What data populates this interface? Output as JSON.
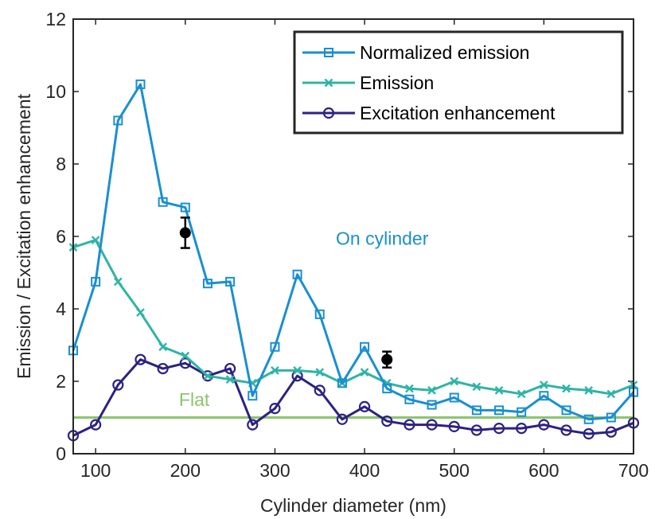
{
  "chart_data": {
    "type": "line",
    "xlabel": "Cylinder diameter (nm)",
    "ylabel": "Emission / Excitation enhancement",
    "xlim": [
      75,
      700
    ],
    "ylim": [
      0,
      12
    ],
    "x_ticks": [
      100,
      200,
      300,
      400,
      500,
      600,
      700
    ],
    "y_ticks": [
      0,
      2,
      4,
      6,
      8,
      10,
      12
    ],
    "legend_position": "top-right",
    "x": [
      75,
      100,
      125,
      150,
      175,
      200,
      225,
      250,
      275,
      300,
      325,
      350,
      375,
      400,
      425,
      450,
      475,
      500,
      525,
      550,
      575,
      600,
      625,
      650,
      675,
      700
    ],
    "series": [
      {
        "name": "Normalized emission",
        "color": "#1a8fd0",
        "marker": "square",
        "values": [
          2.85,
          4.75,
          9.2,
          10.2,
          6.95,
          6.8,
          4.7,
          4.75,
          1.6,
          2.95,
          4.95,
          3.85,
          1.95,
          2.95,
          1.8,
          1.5,
          1.35,
          1.55,
          1.2,
          1.2,
          1.15,
          1.6,
          1.2,
          0.95,
          1.0,
          1.7
        ]
      },
      {
        "name": "Emission",
        "color": "#2fb4a6",
        "marker": "x",
        "values": [
          5.7,
          5.9,
          4.75,
          3.9,
          2.95,
          2.7,
          2.15,
          2.05,
          1.95,
          2.3,
          2.3,
          2.25,
          1.95,
          2.25,
          1.95,
          1.8,
          1.75,
          2.0,
          1.85,
          1.75,
          1.65,
          1.9,
          1.8,
          1.75,
          1.65,
          1.9
        ]
      },
      {
        "name": "Excitation enhancement",
        "color": "#2b2282",
        "marker": "circle",
        "values": [
          0.5,
          0.8,
          1.9,
          2.6,
          2.35,
          2.5,
          2.15,
          2.35,
          0.8,
          1.25,
          2.15,
          1.75,
          0.95,
          1.3,
          0.9,
          0.8,
          0.8,
          0.75,
          0.65,
          0.7,
          0.7,
          0.8,
          0.65,
          0.55,
          0.6,
          0.85
        ]
      }
    ],
    "flat_line": {
      "label": "Flat",
      "value": 1.0,
      "color": "#8cc46e"
    },
    "measured_points": [
      {
        "x": 200,
        "y": 6.1,
        "err": 0.42
      },
      {
        "x": 425,
        "y": 2.6,
        "err": 0.22
      }
    ],
    "annotations": [
      {
        "text": "On cylinder",
        "x": 368,
        "y": 5.95,
        "color": "#1a8fd0"
      },
      {
        "text": "Flat",
        "x": 193,
        "y": 1.5,
        "color": "#8cc46e"
      }
    ]
  }
}
